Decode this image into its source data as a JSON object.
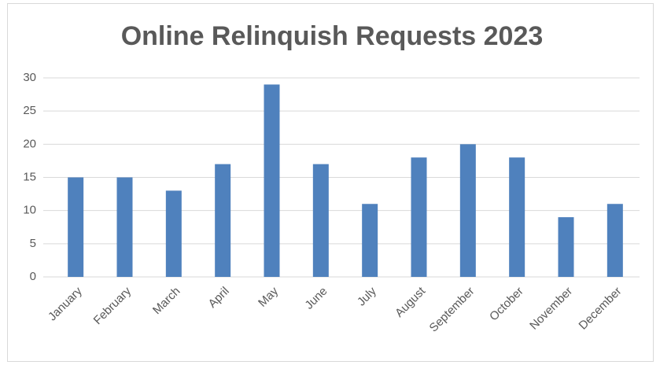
{
  "chart_data": {
    "type": "bar",
    "title": "Online Relinquish Requests 2023",
    "categories": [
      "January",
      "February",
      "March",
      "April",
      "May",
      "June",
      "July",
      "August",
      "September",
      "October",
      "November",
      "December"
    ],
    "values": [
      15,
      15,
      13,
      17,
      29,
      17,
      11,
      18,
      20,
      18,
      9,
      11
    ],
    "color": "#4f81bd",
    "ylim": [
      0,
      30
    ],
    "yticks": [
      0,
      5,
      10,
      15,
      20,
      25,
      30
    ],
    "grid": true
  }
}
